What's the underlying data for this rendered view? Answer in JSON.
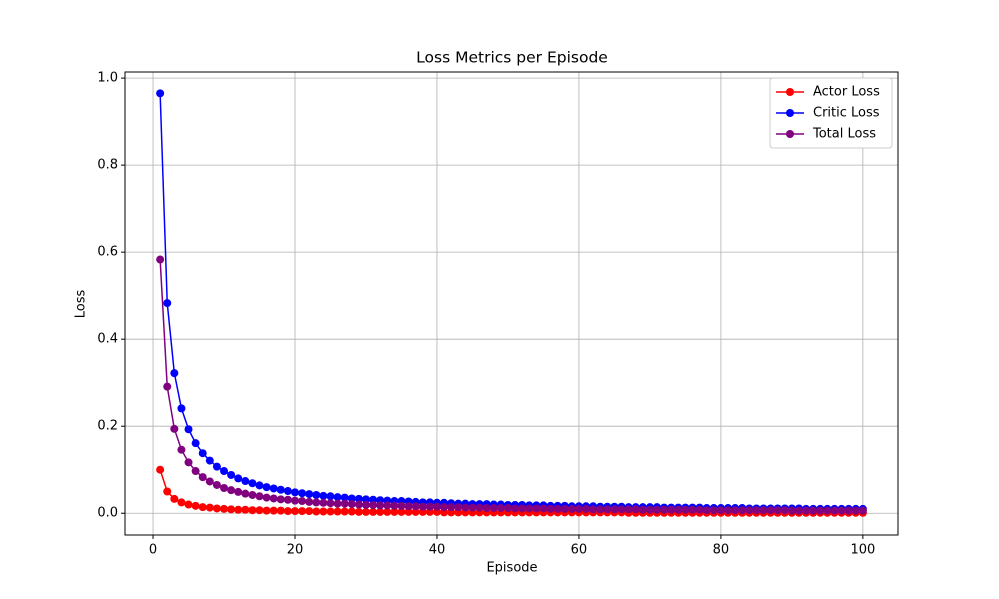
{
  "chart_data": {
    "type": "line",
    "title": "Loss Metrics per Episode",
    "x_label": "Episode",
    "y_label": "Loss",
    "x": [
      1,
      2,
      3,
      4,
      5,
      6,
      7,
      8,
      9,
      10,
      11,
      12,
      13,
      14,
      15,
      16,
      17,
      18,
      19,
      20,
      21,
      22,
      23,
      24,
      25,
      26,
      27,
      28,
      29,
      30,
      31,
      32,
      33,
      34,
      35,
      36,
      37,
      38,
      39,
      40,
      41,
      42,
      43,
      44,
      45,
      46,
      47,
      48,
      49,
      50,
      51,
      52,
      53,
      54,
      55,
      56,
      57,
      58,
      59,
      60,
      61,
      62,
      63,
      64,
      65,
      66,
      67,
      68,
      69,
      70,
      71,
      72,
      73,
      74,
      75,
      76,
      77,
      78,
      79,
      80,
      81,
      82,
      83,
      84,
      85,
      86,
      87,
      88,
      89,
      90,
      91,
      92,
      93,
      94,
      95,
      96,
      97,
      98,
      99,
      100
    ],
    "series": [
      {
        "name": "Actor Loss",
        "color": "#ff0000",
        "values": [
          0.1,
          0.05,
          0.033,
          0.025,
          0.02,
          0.017,
          0.014,
          0.013,
          0.011,
          0.01,
          0.009,
          0.008,
          0.008,
          0.007,
          0.007,
          0.006,
          0.006,
          0.006,
          0.005,
          0.005,
          0.005,
          0.005,
          0.004,
          0.004,
          0.004,
          0.004,
          0.004,
          0.004,
          0.003,
          0.003,
          0.003,
          0.003,
          0.003,
          0.003,
          0.003,
          0.003,
          0.003,
          0.003,
          0.003,
          0.003,
          0.002,
          0.002,
          0.002,
          0.002,
          0.002,
          0.002,
          0.002,
          0.002,
          0.002,
          0.002,
          0.002,
          0.002,
          0.002,
          0.002,
          0.002,
          0.002,
          0.002,
          0.002,
          0.002,
          0.002,
          0.002,
          0.002,
          0.002,
          0.002,
          0.002,
          0.002,
          0.001,
          0.001,
          0.001,
          0.001,
          0.001,
          0.001,
          0.001,
          0.001,
          0.001,
          0.001,
          0.001,
          0.001,
          0.001,
          0.001,
          0.001,
          0.001,
          0.001,
          0.001,
          0.001,
          0.001,
          0.001,
          0.001,
          0.001,
          0.001,
          0.001,
          0.001,
          0.001,
          0.001,
          0.001,
          0.001,
          0.001,
          0.001,
          0.001,
          0.001
        ]
      },
      {
        "name": "Critic Loss",
        "color": "#0000ff",
        "values": [
          0.965,
          0.483,
          0.322,
          0.241,
          0.193,
          0.161,
          0.138,
          0.121,
          0.107,
          0.097,
          0.088,
          0.08,
          0.074,
          0.069,
          0.064,
          0.06,
          0.057,
          0.054,
          0.051,
          0.048,
          0.046,
          0.044,
          0.042,
          0.04,
          0.039,
          0.037,
          0.036,
          0.034,
          0.033,
          0.032,
          0.031,
          0.03,
          0.029,
          0.028,
          0.028,
          0.027,
          0.026,
          0.025,
          0.025,
          0.024,
          0.024,
          0.023,
          0.022,
          0.022,
          0.021,
          0.021,
          0.021,
          0.02,
          0.02,
          0.019,
          0.019,
          0.019,
          0.018,
          0.018,
          0.018,
          0.017,
          0.017,
          0.017,
          0.016,
          0.016,
          0.016,
          0.016,
          0.015,
          0.015,
          0.015,
          0.015,
          0.014,
          0.014,
          0.014,
          0.014,
          0.014,
          0.013,
          0.013,
          0.013,
          0.013,
          0.013,
          0.013,
          0.012,
          0.012,
          0.012,
          0.012,
          0.012,
          0.012,
          0.011,
          0.011,
          0.011,
          0.011,
          0.011,
          0.011,
          0.011,
          0.011,
          0.01,
          0.01,
          0.01,
          0.01,
          0.01,
          0.01,
          0.01,
          0.01,
          0.01
        ]
      },
      {
        "name": "Total Loss",
        "color": "#800080",
        "values": [
          0.583,
          0.291,
          0.194,
          0.146,
          0.117,
          0.097,
          0.083,
          0.073,
          0.065,
          0.058,
          0.053,
          0.049,
          0.045,
          0.042,
          0.039,
          0.036,
          0.034,
          0.032,
          0.031,
          0.029,
          0.028,
          0.026,
          0.025,
          0.024,
          0.023,
          0.022,
          0.022,
          0.021,
          0.02,
          0.019,
          0.019,
          0.018,
          0.018,
          0.017,
          0.017,
          0.016,
          0.016,
          0.015,
          0.015,
          0.015,
          0.014,
          0.014,
          0.014,
          0.013,
          0.013,
          0.013,
          0.012,
          0.012,
          0.012,
          0.012,
          0.011,
          0.011,
          0.011,
          0.011,
          0.011,
          0.01,
          0.01,
          0.01,
          0.01,
          0.01,
          0.01,
          0.009,
          0.009,
          0.009,
          0.009,
          0.009,
          0.009,
          0.009,
          0.008,
          0.008,
          0.008,
          0.008,
          0.008,
          0.008,
          0.008,
          0.008,
          0.008,
          0.007,
          0.007,
          0.007,
          0.007,
          0.007,
          0.007,
          0.007,
          0.007,
          0.007,
          0.007,
          0.007,
          0.007,
          0.006,
          0.006,
          0.006,
          0.006,
          0.006,
          0.006,
          0.006,
          0.006,
          0.006,
          0.006,
          0.006
        ]
      }
    ],
    "xlim": [
      -3.95,
      104.95
    ],
    "ylim": [
      -0.05,
      1.014
    ],
    "xticks": [
      0,
      20,
      40,
      60,
      80,
      100
    ],
    "yticks": [
      {
        "value": 0,
        "label": "0.0"
      },
      {
        "value": 0.2,
        "label": "0.2"
      },
      {
        "value": 0.4,
        "label": "0.4"
      },
      {
        "value": 0.6,
        "label": "0.6"
      },
      {
        "value": 0.8,
        "label": "0.8"
      },
      {
        "value": 1,
        "label": "1.0"
      }
    ],
    "grid": true,
    "legend": "upper right"
  }
}
